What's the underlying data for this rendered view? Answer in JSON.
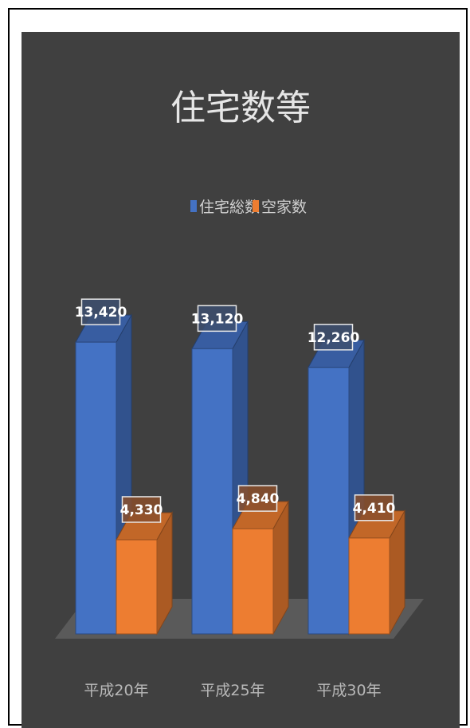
{
  "chart_data": {
    "type": "bar",
    "title": "住宅数等",
    "categories": [
      "平成20年",
      "平成25年",
      "平成30年"
    ],
    "series": [
      {
        "name": "住宅総数",
        "values": [
          13420,
          13120,
          12260
        ],
        "color": "#4472c4"
      },
      {
        "name": "空家数",
        "values": [
          4330,
          4840,
          4410
        ],
        "color": "#ed7d31"
      }
    ],
    "data_labels": [
      [
        "13,420",
        "13,120",
        "12,260"
      ],
      [
        "4,330",
        "4,840",
        "4,410"
      ]
    ],
    "ylim": [
      0,
      15000
    ],
    "grid": false,
    "legend": "top-center",
    "style": "3d-clustered-column",
    "background": "#404040"
  }
}
